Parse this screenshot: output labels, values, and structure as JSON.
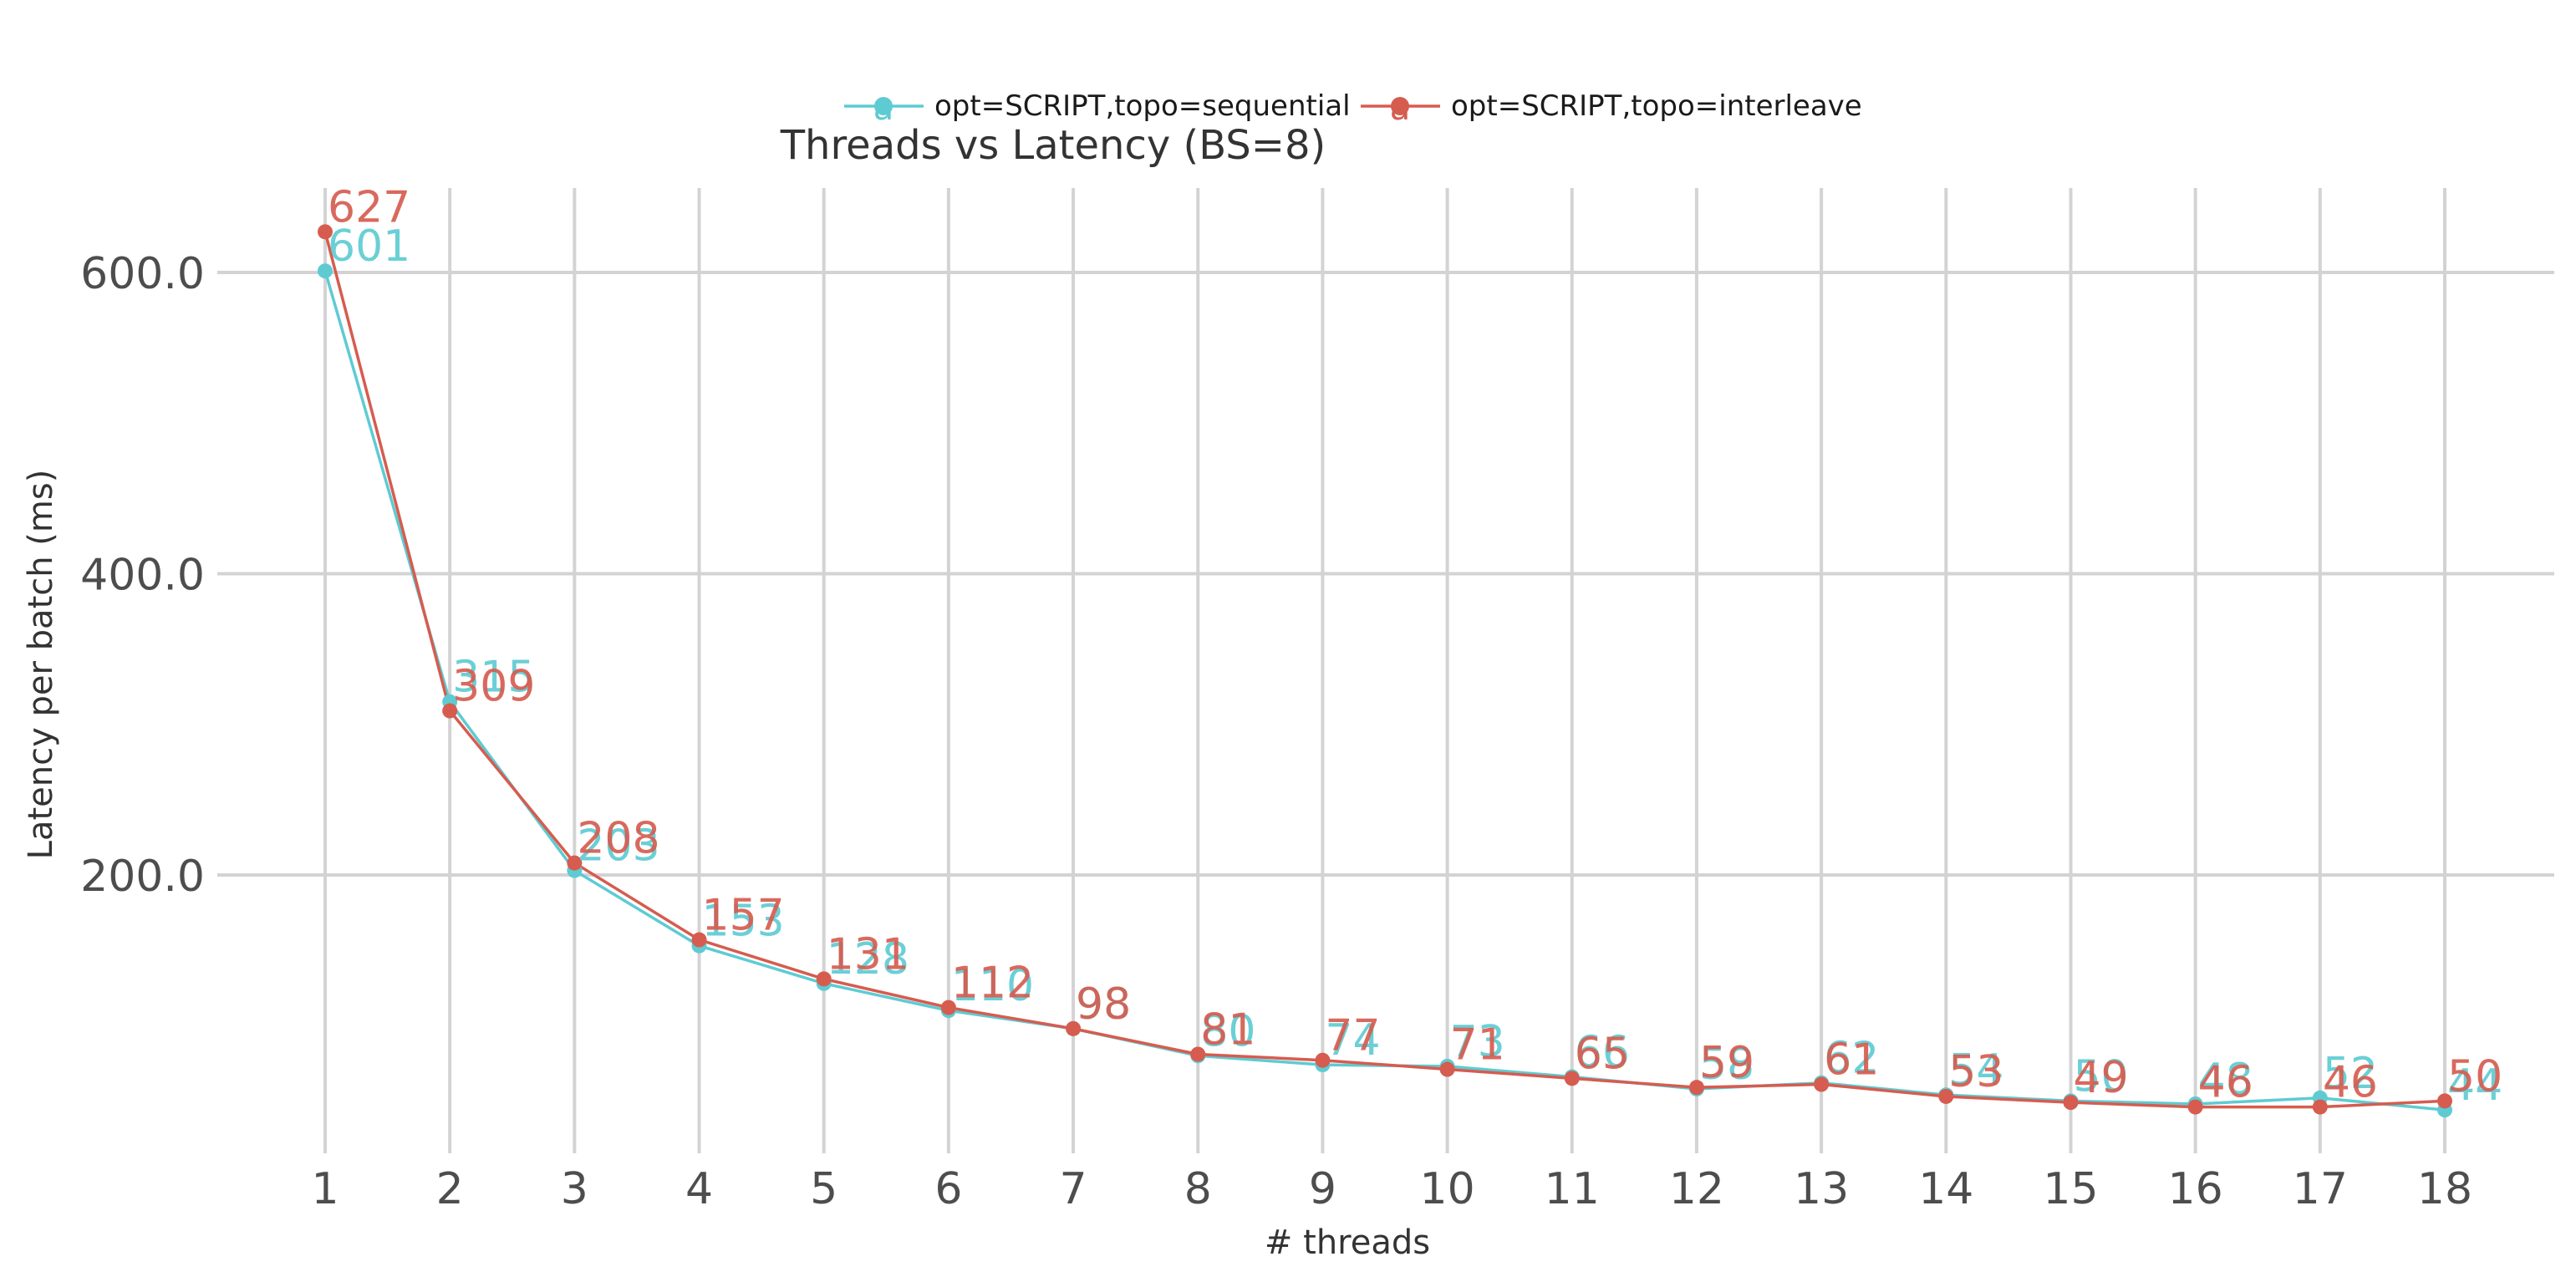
{
  "chart_data": {
    "type": "line",
    "title": "Threads vs Latency (BS=8)",
    "xlabel": "# threads",
    "ylabel": "Latency per batch (ms)",
    "x": [
      1,
      2,
      3,
      4,
      5,
      6,
      7,
      8,
      9,
      10,
      11,
      12,
      13,
      14,
      15,
      16,
      17,
      18
    ],
    "x_tick_labels": [
      "1",
      "2",
      "3",
      "4",
      "5",
      "6",
      "7",
      "8",
      "9",
      "10",
      "11",
      "12",
      "13",
      "14",
      "15",
      "16",
      "17",
      "18"
    ],
    "y_ticks": [
      200,
      400,
      600
    ],
    "y_tick_labels": [
      "200.0",
      "400.0",
      "600.0"
    ],
    "xlim": [
      0.3,
      18.85
    ],
    "ylim": [
      20,
      655
    ],
    "grid": true,
    "legend_position": "top",
    "series": [
      {
        "name": "opt=SCRIPT,topo=sequential",
        "color": "#5ecbd3",
        "values": [
          601,
          315,
          203,
          153,
          128,
          110,
          98,
          80,
          74,
          73,
          66,
          58,
          62,
          54,
          50,
          48,
          52,
          44
        ],
        "labels": [
          "601",
          "315",
          "203",
          "153",
          "128",
          "110",
          "98",
          "80",
          "74",
          "73",
          "66",
          "58",
          "62",
          "54",
          "50",
          "48",
          "52",
          "44"
        ]
      },
      {
        "name": "opt=SCRIPT,topo=interleave",
        "color": "#d65c4f",
        "values": [
          627,
          309,
          208,
          157,
          131,
          112,
          98,
          81,
          77,
          71,
          65,
          59,
          61,
          53,
          49,
          46,
          46,
          50
        ],
        "labels": [
          "627",
          "309",
          "208",
          "157",
          "131",
          "112",
          "98",
          "81",
          "77",
          "71",
          "65",
          "59",
          "61",
          "53",
          "49",
          "46",
          "46",
          "50"
        ]
      }
    ],
    "legend_key_glyph": "a"
  }
}
